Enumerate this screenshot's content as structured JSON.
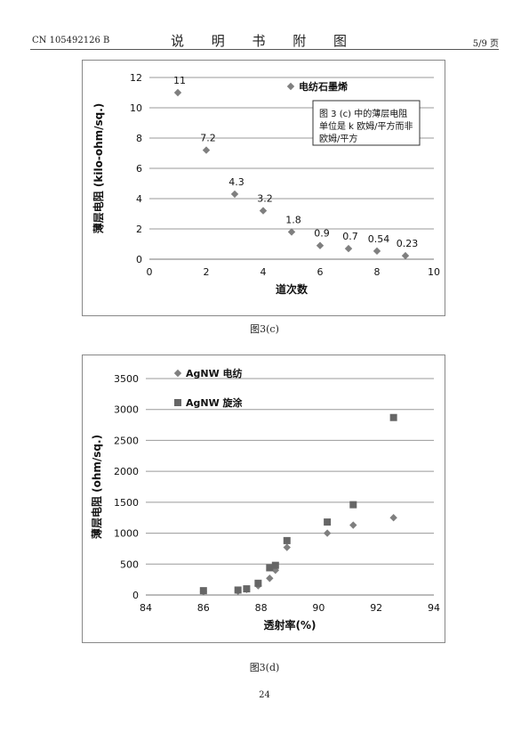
{
  "header": {
    "patent_no": "CN 105492126 B",
    "title": "说 明 书 附 图",
    "page": "5/9 页"
  },
  "figures": [
    {
      "caption": "图3(c)"
    },
    {
      "caption": "图3(d)"
    }
  ],
  "page_number": "24",
  "chart_data": [
    {
      "type": "scatter",
      "xlabel": "道次数",
      "ylabel": "薄层电阻 (kilo-ohm/sq.)",
      "xlim": [
        0,
        10
      ],
      "ylim": [
        0,
        12
      ],
      "xticks": [
        0,
        2,
        4,
        6,
        8,
        10
      ],
      "yticks": [
        0,
        2,
        4,
        6,
        8,
        10,
        12
      ],
      "grid": "horizontal",
      "legend_position": "top-right",
      "annotation": "图 3 (c) 中的薄层电阻单位是 k 欧姆/平方而非欧姆/平方",
      "annotation_lines": [
        "图 3 (c) 中的薄层电阻",
        "单位是 k 欧姆/平方而非",
        "欧姆/平方"
      ],
      "series": [
        {
          "name": "电纺石墨烯",
          "marker": "diamond",
          "color": "#7f7f7f",
          "x": [
            1,
            2,
            3,
            4,
            5,
            6,
            7,
            8,
            9
          ],
          "y": [
            11,
            7.2,
            4.3,
            3.2,
            1.8,
            0.9,
            0.7,
            0.54,
            0.23
          ],
          "labels": [
            "11",
            "7.2",
            "4.3",
            "3.2",
            "1.8",
            "0.9",
            "0.7",
            "0.54",
            "0.23"
          ]
        }
      ]
    },
    {
      "type": "scatter",
      "xlabel": "透射率(%)",
      "ylabel": "薄层电阻 (ohm/sq.)",
      "xlim": [
        84,
        94
      ],
      "ylim": [
        0,
        3500
      ],
      "xticks": [
        84,
        86,
        88,
        90,
        92,
        94
      ],
      "yticks": [
        0,
        500,
        1000,
        1500,
        2000,
        2500,
        3000,
        3500
      ],
      "grid": "horizontal",
      "legend_position": "top-left",
      "series": [
        {
          "name": "AgNW 电纺",
          "marker": "diamond",
          "color": "#7f7f7f",
          "x": [
            86,
            87.2,
            87.5,
            87.9,
            88.3,
            88.5,
            88.9,
            90.3,
            91.2,
            92.6
          ],
          "y": [
            55,
            60,
            90,
            150,
            270,
            400,
            770,
            1000,
            1130,
            1250
          ]
        },
        {
          "name": "AgNW 旋涂",
          "marker": "square",
          "color": "#666666",
          "x": [
            86,
            87.2,
            87.5,
            87.9,
            88.3,
            88.5,
            88.9,
            90.3,
            91.2,
            92.6
          ],
          "y": [
            70,
            80,
            100,
            190,
            440,
            480,
            880,
            1180,
            1460,
            2870
          ]
        }
      ]
    }
  ]
}
